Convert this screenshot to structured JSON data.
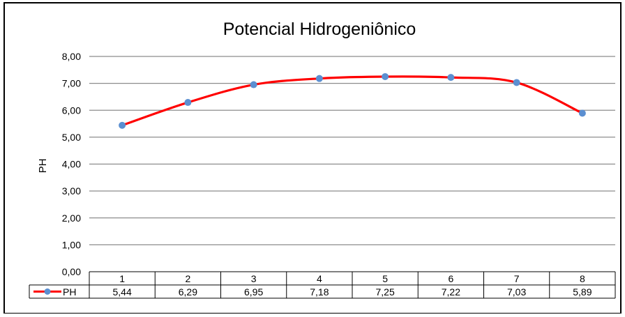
{
  "chart_data": {
    "type": "line",
    "title": "Potencial Hidrogeniônico",
    "xlabel": "",
    "ylabel": "PH",
    "ylim": [
      0,
      8
    ],
    "y_ticks": [
      "0,00",
      "1,00",
      "2,00",
      "3,00",
      "4,00",
      "5,00",
      "6,00",
      "7,00",
      "8,00"
    ],
    "categories": [
      "1",
      "2",
      "3",
      "4",
      "5",
      "6",
      "7",
      "8"
    ],
    "series": [
      {
        "name": "PH",
        "values": [
          5.44,
          6.29,
          6.95,
          7.18,
          7.25,
          7.22,
          7.03,
          5.89
        ],
        "value_labels": [
          "5,44",
          "6,29",
          "6,95",
          "7,18",
          "7,25",
          "7,22",
          "7,03",
          "5,89"
        ],
        "line_color": "#ff0000",
        "marker_color": "#5b8fd1"
      }
    ],
    "grid": true,
    "legend": "data-table"
  }
}
